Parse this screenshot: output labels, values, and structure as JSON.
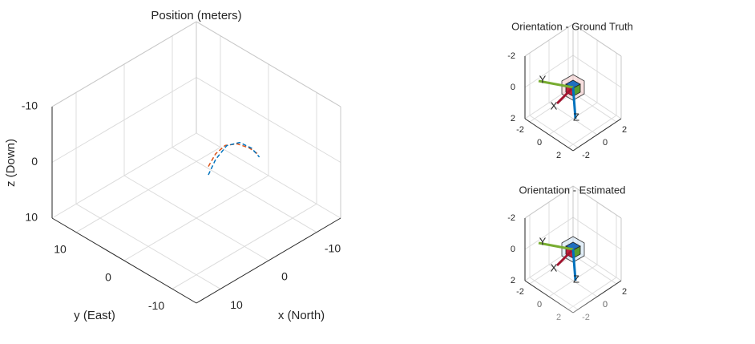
{
  "chart_data": [
    {
      "type": "line3d",
      "title": "Position (meters)",
      "xlabel": "x (North)",
      "ylabel": "y (East)",
      "zlabel": "z (Down)",
      "xlim": [
        -15,
        15
      ],
      "ylim": [
        -15,
        15
      ],
      "zlim": [
        -10,
        10
      ],
      "xticks": [
        -10,
        0,
        10
      ],
      "yticks": [
        -10,
        0,
        10
      ],
      "zticks": [
        -10,
        0,
        10
      ],
      "grid": true,
      "series": [
        {
          "color": "#d95319",
          "x": [
            -2.5,
            -4,
            -6,
            -8.5,
            -11,
            -12.8
          ],
          "y": [
            0,
            0,
            0,
            0,
            0,
            0
          ],
          "z": [
            2,
            0.5,
            0,
            1,
            3,
            5
          ]
        },
        {
          "color": "#0072bd",
          "x": [
            -2,
            -3.5,
            -5.8,
            -8.5,
            -11,
            -12.6
          ],
          "y": [
            -0.5,
            -0.5,
            -0.5,
            -0.5,
            -0.5,
            -0.5
          ],
          "z": [
            3,
            1,
            -0.3,
            0.5,
            2.8,
            5.2
          ]
        }
      ]
    },
    {
      "type": "orientation",
      "title": "Orientation - Ground Truth",
      "xlim": [
        -2.5,
        2.5
      ],
      "ylim": [
        -2.5,
        2.5
      ],
      "zlim": [
        -2,
        2
      ],
      "xticks": [
        -2,
        0,
        2
      ],
      "yticks": [
        -2,
        0,
        2
      ],
      "zticks": [
        -2,
        0,
        2
      ],
      "grid": true,
      "body_axes": [
        "X",
        "Y",
        "Z"
      ],
      "body_color": "#f4cccc"
    },
    {
      "type": "orientation",
      "title": "Orientation - Estimated",
      "xlim": [
        -2.5,
        2.5
      ],
      "ylim": [
        -2.5,
        2.5
      ],
      "zlim": [
        -2,
        2
      ],
      "xticks": [
        -2,
        0,
        2
      ],
      "yticks": [
        -2,
        0,
        2
      ],
      "zticks": [
        -2,
        0,
        2
      ],
      "grid": true,
      "body_axes": [
        "X",
        "Y",
        "Z"
      ],
      "body_color": "#cfe2f3"
    }
  ]
}
